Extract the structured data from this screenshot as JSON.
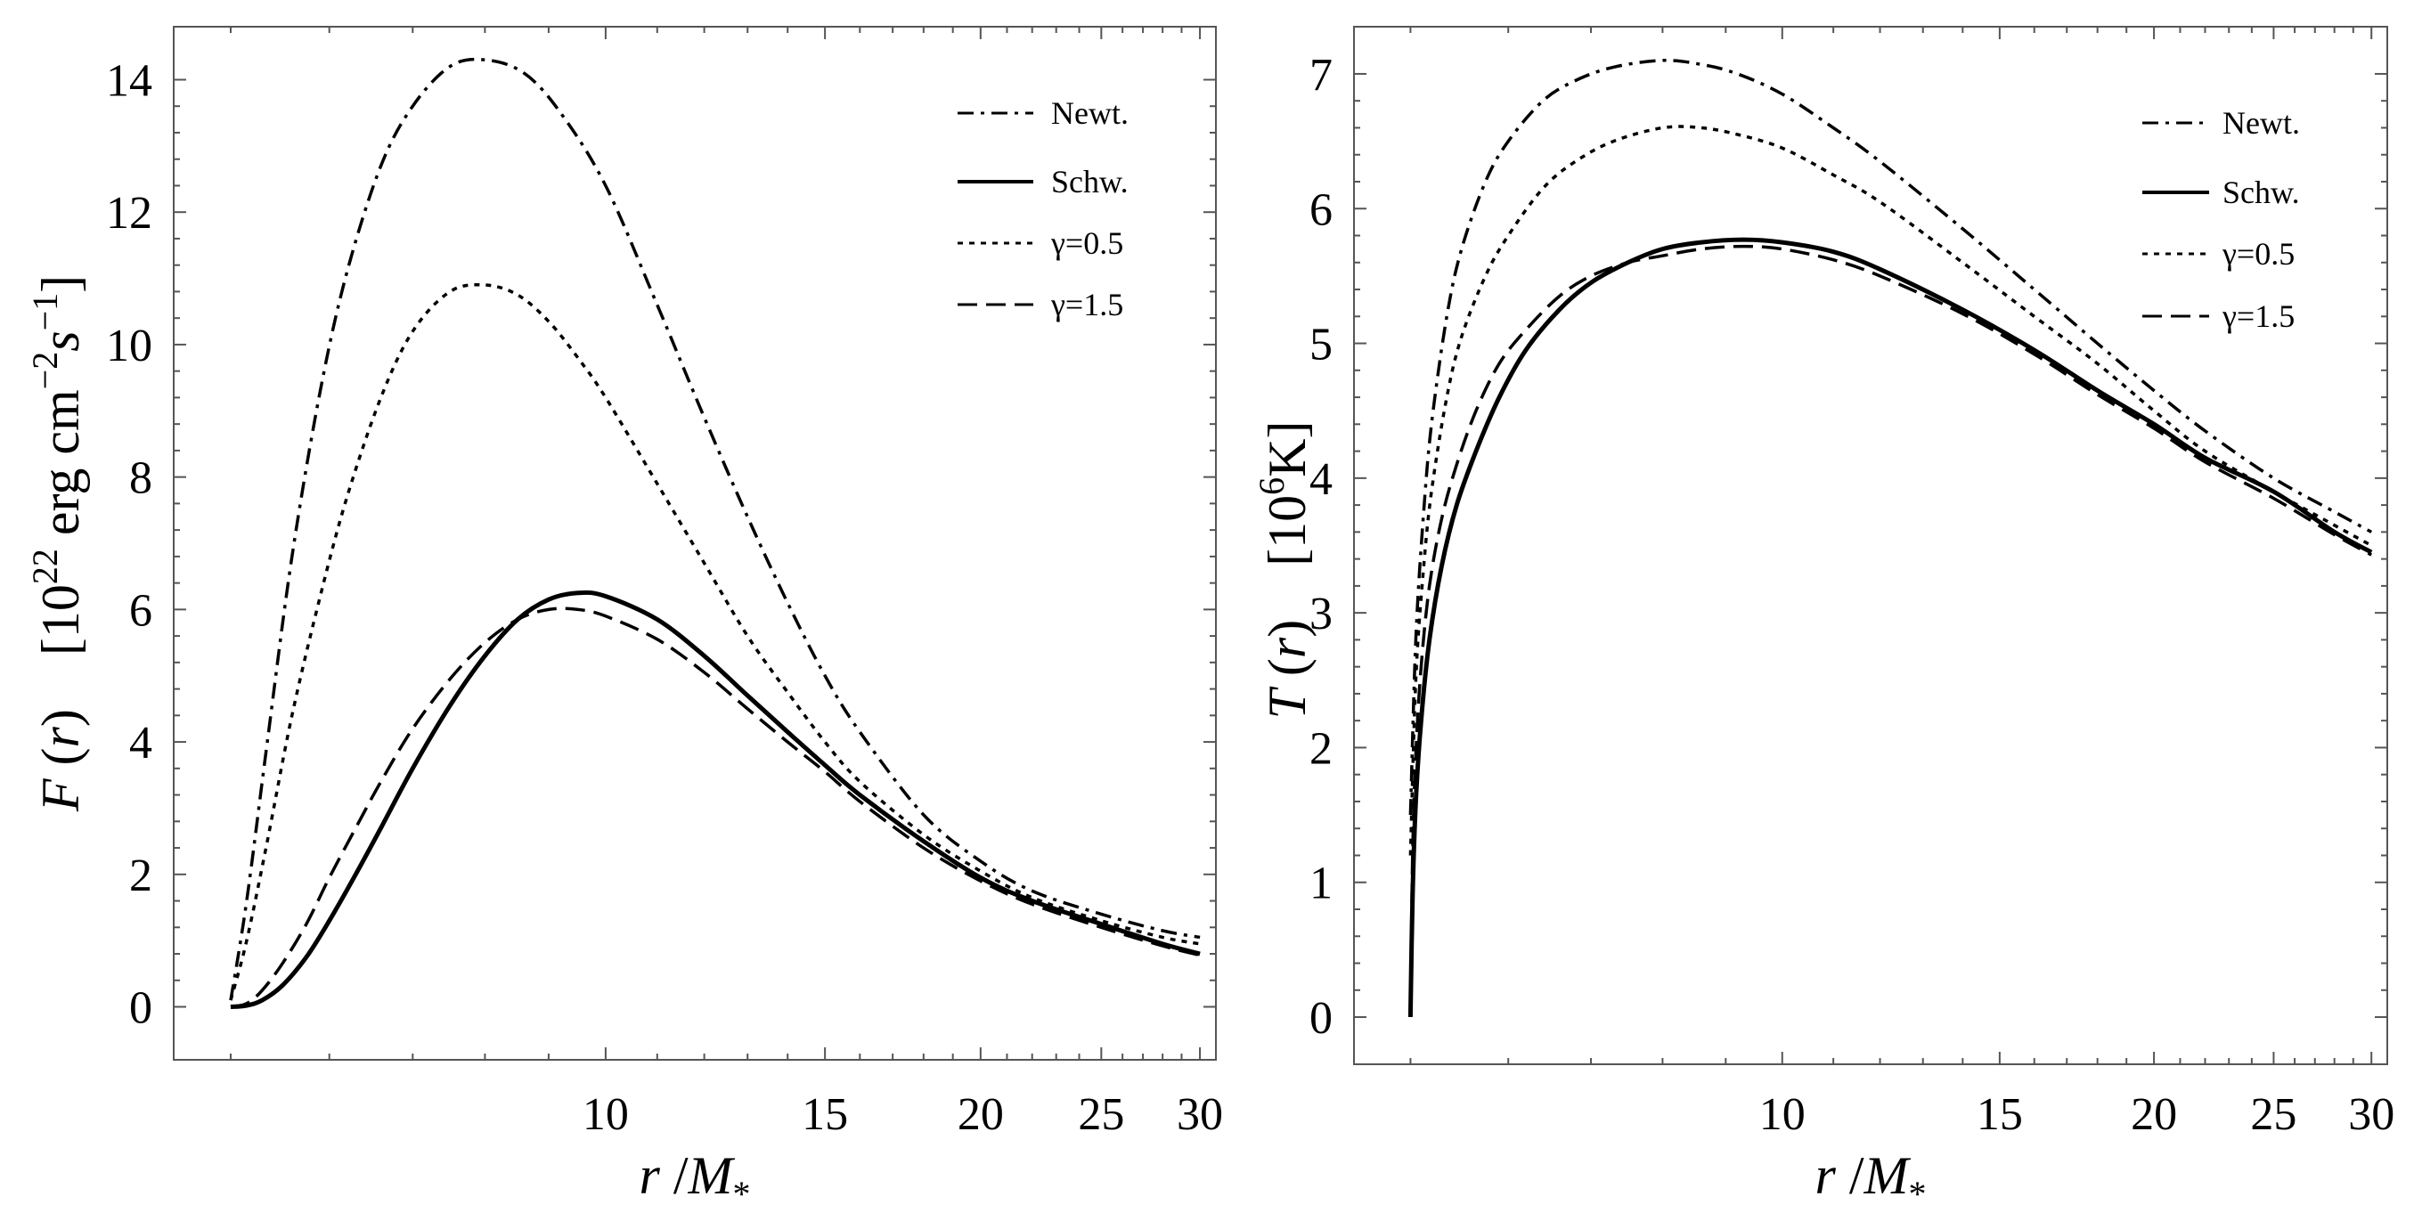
{
  "colors": {
    "ink": "#000000",
    "frame": "#555555",
    "background": "#ffffff"
  },
  "chart_data": [
    {
      "type": "line",
      "name": "flux",
      "ylabel": {
        "func": "F",
        "var": "r",
        "units_prefix": "[10",
        "units_exp": "22",
        "units_text": " erg cm",
        "units_exp2": "−2",
        "units_s": "s",
        "units_exp3": "−1",
        "units_close": "]"
      },
      "xlabel": {
        "var": "r",
        "sep": " /",
        "mass": "M",
        "sub": "*"
      },
      "xlim": [
        4.5,
        30.9
      ],
      "ylim": [
        -0.8,
        14.8
      ],
      "xscale": "log",
      "x_ticks": [
        10,
        15,
        20,
        25,
        30
      ],
      "x_tick_labels": [
        "10",
        "15",
        "20",
        "25",
        "30"
      ],
      "y_ticks": [
        0,
        2,
        4,
        6,
        8,
        10,
        12,
        14
      ],
      "y_tick_labels": [
        "0",
        "2",
        "4",
        "6",
        "8",
        "10",
        "12",
        "14"
      ],
      "legend": [
        {
          "label": "Newt.",
          "style": "dashdot"
        },
        {
          "label": "Schw.",
          "style": "solid"
        },
        {
          "label": "γ=0.5",
          "style": "dotted"
        },
        {
          "label": "γ=1.5",
          "style": "dashed"
        }
      ],
      "series": [
        {
          "name": "Newt.",
          "style": "dashdot",
          "x": [
            5.0,
            5.15,
            5.35,
            5.6,
            5.9,
            6.2,
            6.6,
            7.0,
            7.5,
            8.0,
            8.6,
            9.2,
            10,
            11,
            12,
            13,
            14,
            15,
            16,
            18,
            20,
            22,
            25,
            28,
            30
          ],
          "y": [
            0.1,
            1.6,
            4.0,
            6.8,
            9.3,
            11.1,
            12.7,
            13.6,
            14.2,
            14.3,
            14.1,
            13.5,
            12.4,
            10.6,
            8.9,
            7.4,
            6.1,
            5.0,
            4.15,
            2.9,
            2.2,
            1.75,
            1.4,
            1.15,
            1.05
          ]
        },
        {
          "name": "Schw.",
          "style": "solid",
          "x": [
            5.0,
            5.15,
            5.3,
            5.5,
            5.75,
            6.0,
            6.3,
            6.6,
            7.0,
            7.5,
            8.0,
            8.5,
            9.0,
            9.5,
            10,
            11,
            12,
            13,
            14,
            15,
            16,
            18,
            20,
            22,
            25,
            28,
            30
          ],
          "y": [
            0.0,
            0.02,
            0.1,
            0.32,
            0.75,
            1.3,
            2.0,
            2.7,
            3.6,
            4.55,
            5.3,
            5.85,
            6.15,
            6.25,
            6.2,
            5.85,
            5.3,
            4.7,
            4.15,
            3.65,
            3.2,
            2.5,
            1.95,
            1.6,
            1.25,
            0.95,
            0.8
          ]
        },
        {
          "name": "γ=0.5",
          "style": "dotted",
          "x": [
            5.0,
            5.15,
            5.35,
            5.6,
            5.9,
            6.2,
            6.6,
            7.0,
            7.5,
            8.0,
            8.5,
            9.0,
            9.5,
            10,
            11,
            12,
            13,
            14,
            15,
            16,
            18,
            20,
            22,
            25,
            28,
            30
          ],
          "y": [
            0.1,
            1.0,
            2.5,
            4.4,
            6.2,
            7.7,
            9.2,
            10.2,
            10.8,
            10.9,
            10.75,
            10.35,
            9.8,
            9.2,
            7.9,
            6.7,
            5.6,
            4.75,
            4.0,
            3.4,
            2.6,
            2.05,
            1.65,
            1.3,
            1.05,
            0.95
          ]
        },
        {
          "name": "γ=1.5",
          "style": "dashed",
          "x": [
            5.0,
            5.15,
            5.3,
            5.5,
            5.75,
            6.0,
            6.3,
            6.6,
            7.0,
            7.5,
            8.0,
            8.5,
            9.0,
            9.5,
            10,
            11,
            12,
            13,
            14,
            15,
            16,
            18,
            20,
            22,
            25,
            28,
            30
          ],
          "y": [
            0.0,
            0.05,
            0.25,
            0.65,
            1.25,
            1.95,
            2.7,
            3.4,
            4.2,
            4.95,
            5.5,
            5.85,
            6.0,
            6.0,
            5.9,
            5.55,
            5.05,
            4.5,
            4.0,
            3.55,
            3.1,
            2.4,
            1.9,
            1.55,
            1.2,
            0.92,
            0.78
          ]
        }
      ]
    },
    {
      "type": "line",
      "name": "temperature",
      "ylabel": {
        "func": "T",
        "var": "r",
        "units_prefix": "[10",
        "units_exp": "6",
        "units_text": "K]"
      },
      "xlabel": {
        "var": "r",
        "sep": " /",
        "mass": "M",
        "sub": "*"
      },
      "xlim": [
        4.5,
        30.9
      ],
      "ylim": [
        -0.35,
        7.35
      ],
      "xscale": "log",
      "x_ticks": [
        10,
        15,
        20,
        25,
        30
      ],
      "x_tick_labels": [
        "10",
        "15",
        "20",
        "25",
        "30"
      ],
      "y_ticks": [
        0,
        1,
        2,
        3,
        4,
        5,
        6,
        7
      ],
      "y_tick_labels": [
        "0",
        "1",
        "2",
        "3",
        "4",
        "5",
        "6",
        "7"
      ],
      "legend": [
        {
          "label": "Newt.",
          "style": "dashdot"
        },
        {
          "label": "Schw.",
          "style": "solid"
        },
        {
          "label": "γ=0.5",
          "style": "dotted"
        },
        {
          "label": "γ=1.5",
          "style": "dashed"
        }
      ],
      "series": [
        {
          "name": "Newt.",
          "style": "dashdot",
          "x": [
            5.0,
            5.05,
            5.12,
            5.2,
            5.35,
            5.5,
            5.75,
            6.0,
            6.4,
            6.8,
            7.3,
            8.0,
            8.6,
            9.2,
            10,
            11,
            12,
            14,
            16,
            18,
            20,
            22,
            25,
            28,
            30
          ],
          "y": [
            1.5,
            2.8,
            3.7,
            4.4,
            5.2,
            5.7,
            6.2,
            6.5,
            6.8,
            6.95,
            7.05,
            7.1,
            7.07,
            7.0,
            6.85,
            6.6,
            6.35,
            5.85,
            5.4,
            5.0,
            4.65,
            4.35,
            4.0,
            3.75,
            3.6
          ]
        },
        {
          "name": "Schw.",
          "style": "solid",
          "x": [
            5.0,
            5.02,
            5.05,
            5.1,
            5.18,
            5.3,
            5.45,
            5.65,
            5.9,
            6.2,
            6.6,
            7.0,
            7.5,
            8.0,
            8.6,
            9.3,
            10,
            11,
            12,
            14,
            16,
            18,
            20,
            22,
            25,
            28,
            30
          ],
          "y": [
            0.0,
            0.9,
            1.6,
            2.2,
            2.8,
            3.35,
            3.8,
            4.2,
            4.6,
            4.95,
            5.25,
            5.45,
            5.6,
            5.7,
            5.75,
            5.77,
            5.75,
            5.68,
            5.55,
            5.25,
            4.95,
            4.65,
            4.4,
            4.15,
            3.9,
            3.6,
            3.45
          ]
        },
        {
          "name": "γ=0.5",
          "style": "dotted",
          "x": [
            5.0,
            5.05,
            5.12,
            5.2,
            5.35,
            5.5,
            5.75,
            6.0,
            6.4,
            6.8,
            7.3,
            8.0,
            8.6,
            9.2,
            10,
            11,
            12,
            14,
            16,
            18,
            20,
            22,
            25,
            28,
            30
          ],
          "y": [
            1.2,
            2.5,
            3.3,
            3.9,
            4.6,
            5.05,
            5.5,
            5.8,
            6.15,
            6.35,
            6.5,
            6.6,
            6.6,
            6.55,
            6.45,
            6.25,
            6.05,
            5.6,
            5.2,
            4.85,
            4.5,
            4.2,
            3.9,
            3.65,
            3.5
          ]
        },
        {
          "name": "γ=1.5",
          "style": "dashed",
          "x": [
            5.0,
            5.02,
            5.05,
            5.1,
            5.18,
            5.3,
            5.45,
            5.65,
            5.9,
            6.2,
            6.6,
            7.0,
            7.5,
            8.0,
            8.6,
            9.3,
            10,
            11,
            12,
            14,
            16,
            18,
            20,
            22,
            25,
            28,
            30
          ],
          "y": [
            0.0,
            1.2,
            1.95,
            2.6,
            3.2,
            3.7,
            4.1,
            4.5,
            4.85,
            5.1,
            5.35,
            5.5,
            5.6,
            5.65,
            5.7,
            5.72,
            5.7,
            5.62,
            5.5,
            5.22,
            4.92,
            4.62,
            4.37,
            4.12,
            3.85,
            3.58,
            3.43
          ]
        }
      ]
    }
  ]
}
